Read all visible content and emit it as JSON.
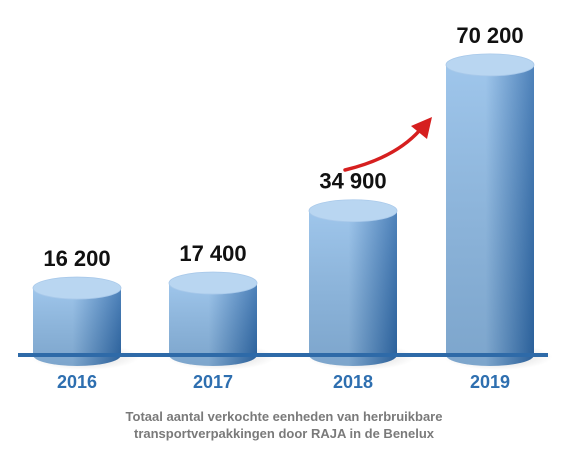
{
  "chart_data": {
    "type": "bar",
    "categories": [
      "2016",
      "2017",
      "2018",
      "2019"
    ],
    "values": [
      16200,
      17400,
      34900,
      70200
    ],
    "value_labels": [
      "16 200",
      "17 400",
      "34 900",
      "70 200"
    ],
    "title": "",
    "xlabel": "",
    "ylabel": "",
    "ylim": [
      0,
      75000
    ],
    "grid": false,
    "legend": "none",
    "bar_style": "3d-cylinder"
  },
  "caption": {
    "line1": "Totaal aantal verkochte eenheden van herbruikbare",
    "line2": "transportverpakkingen door RAJA in de Benelux"
  },
  "colors": {
    "bar_top": "#b9d6f1",
    "bar_light": "#8ebce8",
    "bar_dark": "#2f6cae",
    "baseline": "#2e6aa8",
    "year_label": "#2e6fb0",
    "value_label": "#111111",
    "arrow": "#d61f1f",
    "caption": "#7a7a7a"
  }
}
